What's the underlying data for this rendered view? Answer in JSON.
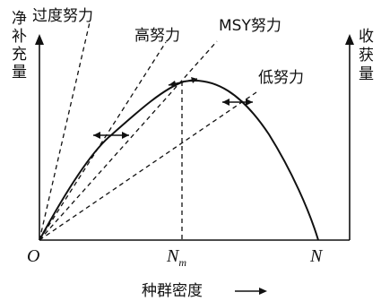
{
  "left_axis_label": [
    "净",
    "补",
    "充",
    "量"
  ],
  "right_axis_label": [
    "收",
    "获",
    "量"
  ],
  "x_axis_label": "种群密度",
  "origin_label": "O",
  "nm_label": "N",
  "nm_sub": "m",
  "n_label": "N",
  "effort_labels": {
    "over": "过度努力",
    "high": "高努力",
    "msy": "MSY努力",
    "low": "低努力"
  }
}
